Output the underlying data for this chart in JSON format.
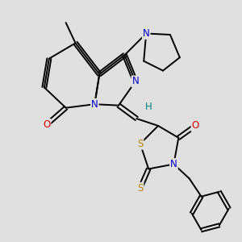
{
  "background_color": "#e0e0e0",
  "atom_colors": {
    "C": "#000000",
    "N": "#0000cc",
    "O": "#dd0000",
    "S": "#b8860b",
    "H": "#008080"
  },
  "bond_color": "#000000",
  "bond_width": 1.4,
  "figsize": [
    3.0,
    3.0
  ],
  "dpi": 100
}
